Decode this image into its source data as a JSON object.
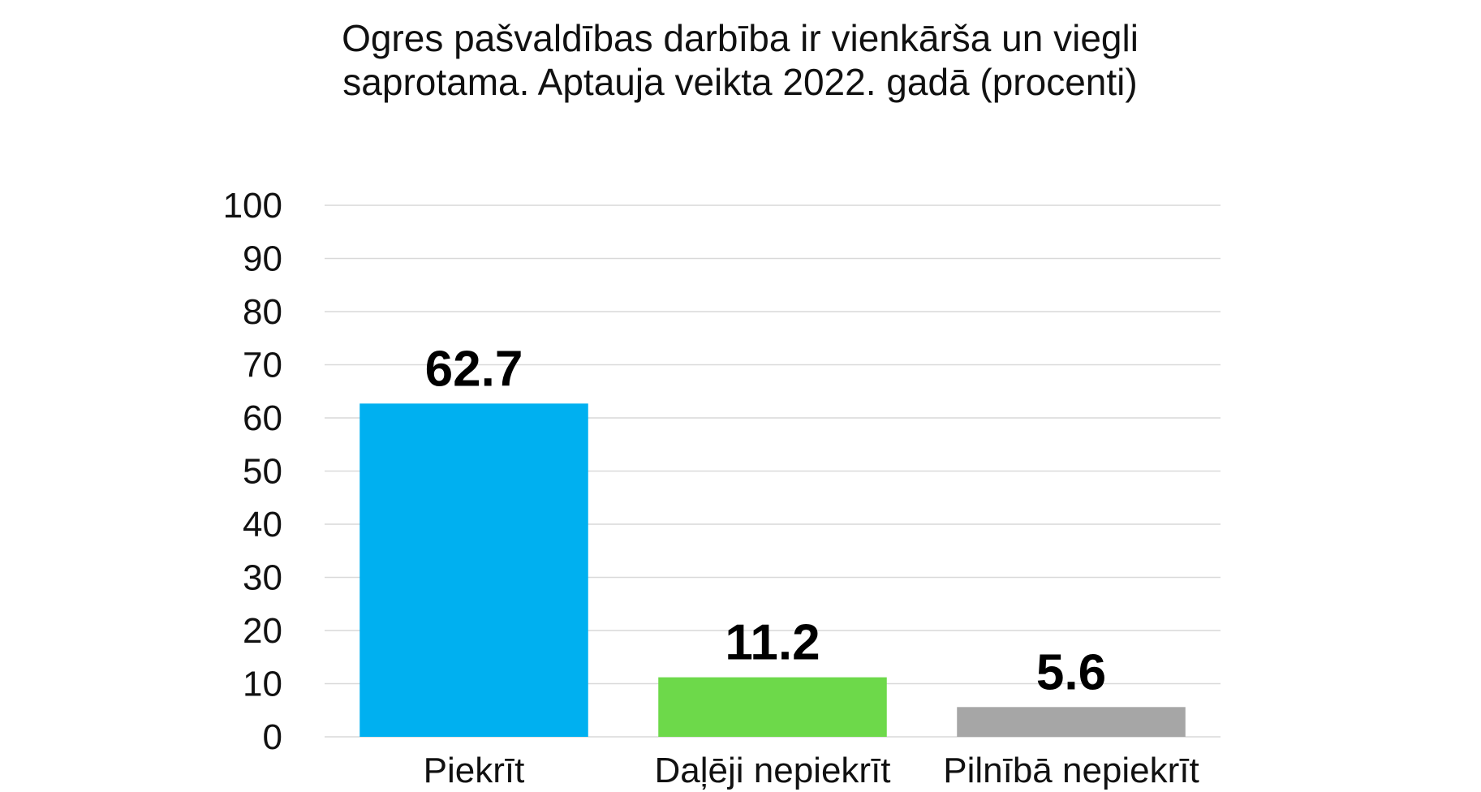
{
  "chart_data": {
    "type": "bar",
    "title": "Ogres pašvaldības darbība ir vienkārša un viegli saprotama. Aptauja veikta 2022. gadā (procenti)",
    "xlabel": "",
    "ylabel": "",
    "ylim": [
      0,
      100
    ],
    "yticks": [
      "0",
      "10",
      "20",
      "30",
      "40",
      "50",
      "60",
      "70",
      "80",
      "90",
      "100"
    ],
    "grid": true,
    "legend": "none",
    "categories": [
      "Piekrīt",
      "Daļēji nepiekrīt",
      "Pilnībā nepiekrīt"
    ],
    "values": [
      62.7,
      11.2,
      5.6
    ],
    "value_labels": [
      "62.7",
      "11.2",
      "5.6"
    ],
    "colors": [
      "#00b0f0",
      "#6dd94a",
      "#a6a6a6"
    ]
  }
}
